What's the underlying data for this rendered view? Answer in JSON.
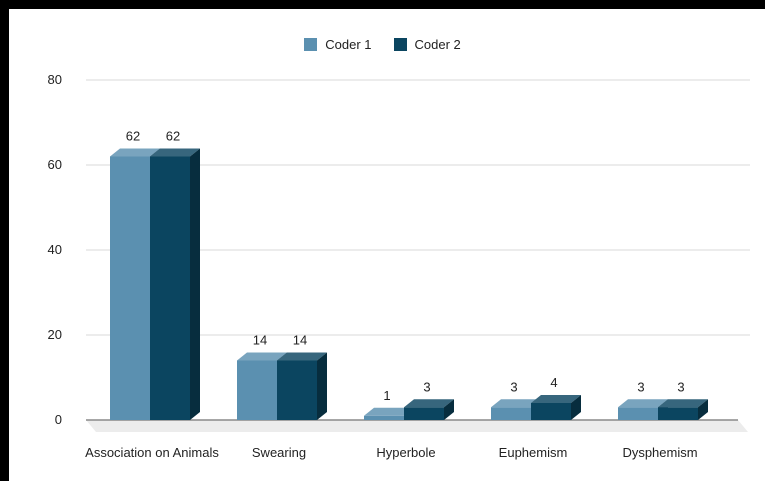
{
  "chart_data": {
    "type": "bar",
    "categories": [
      "Association on Animals",
      "Swearing",
      "Hyperbole",
      "Euphemism",
      "Dysphemism"
    ],
    "series": [
      {
        "name": "Coder 1",
        "values": [
          62,
          14,
          1,
          3,
          3
        ],
        "color": "#5b90b0"
      },
      {
        "name": "Coder 2",
        "values": [
          62,
          14,
          3,
          4,
          3
        ],
        "color": "#0b4560"
      }
    ],
    "ylim": [
      0,
      80
    ],
    "yticks": [
      "0",
      "20",
      "40",
      "60",
      "80"
    ],
    "legend_position": "top-center",
    "grid": true,
    "style": "3d"
  }
}
